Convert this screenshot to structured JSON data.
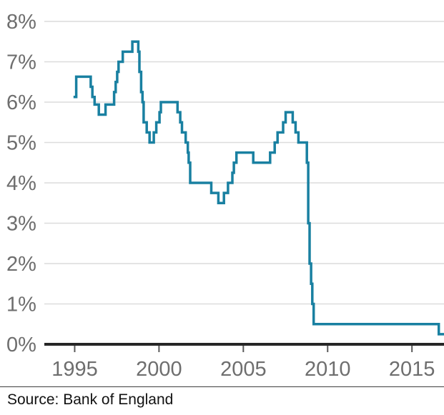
{
  "footer": {
    "source": "Source: Bank of England"
  },
  "colors": {
    "line": "#1980a1",
    "grid": "#dcdcdc",
    "axis": "#262626",
    "tick": "#5a5a5a",
    "label": "#6e6e6e",
    "source_text": "#121212",
    "rule": "#3d3d3d",
    "background": "#ffffff"
  },
  "chart_data": {
    "type": "line",
    "line_style": "step-after",
    "xlabel": "",
    "ylabel": "",
    "grid": "horizontal",
    "legend": "none",
    "xlim": [
      1993.2,
      2016.9
    ],
    "ylim": [
      0,
      8
    ],
    "x_ticks": [
      "1995",
      "2000",
      "2005",
      "2010",
      "2015"
    ],
    "y_ticks": [
      "0%",
      "1%",
      "2%",
      "3%",
      "4%",
      "5%",
      "6%",
      "7%",
      "8%"
    ],
    "unit": "percent",
    "steps": [
      [
        1994.93,
        6.13
      ],
      [
        1995.09,
        6.63
      ],
      [
        1995.95,
        6.38
      ],
      [
        1996.05,
        6.13
      ],
      [
        1996.18,
        5.94
      ],
      [
        1996.43,
        5.69
      ],
      [
        1996.83,
        5.94
      ],
      [
        1997.34,
        6.25
      ],
      [
        1997.43,
        6.5
      ],
      [
        1997.52,
        6.75
      ],
      [
        1997.6,
        7.0
      ],
      [
        1997.85,
        7.25
      ],
      [
        1998.42,
        7.5
      ],
      [
        1998.77,
        7.25
      ],
      [
        1998.84,
        6.75
      ],
      [
        1998.94,
        6.25
      ],
      [
        1999.02,
        6.0
      ],
      [
        1999.09,
        5.5
      ],
      [
        1999.27,
        5.25
      ],
      [
        1999.44,
        5.0
      ],
      [
        1999.69,
        5.25
      ],
      [
        1999.84,
        5.5
      ],
      [
        2000.03,
        5.75
      ],
      [
        2000.11,
        6.0
      ],
      [
        2001.1,
        5.75
      ],
      [
        2001.26,
        5.5
      ],
      [
        2001.36,
        5.25
      ],
      [
        2001.58,
        5.0
      ],
      [
        2001.71,
        4.75
      ],
      [
        2001.76,
        4.5
      ],
      [
        2001.85,
        4.0
      ],
      [
        2003.1,
        3.75
      ],
      [
        2003.52,
        3.5
      ],
      [
        2003.85,
        3.75
      ],
      [
        2004.09,
        4.0
      ],
      [
        2004.35,
        4.25
      ],
      [
        2004.44,
        4.5
      ],
      [
        2004.59,
        4.75
      ],
      [
        2005.59,
        4.5
      ],
      [
        2006.59,
        4.75
      ],
      [
        2006.86,
        5.0
      ],
      [
        2007.03,
        5.25
      ],
      [
        2007.36,
        5.5
      ],
      [
        2007.51,
        5.75
      ],
      [
        2007.93,
        5.5
      ],
      [
        2008.1,
        5.25
      ],
      [
        2008.27,
        5.0
      ],
      [
        2008.77,
        4.5
      ],
      [
        2008.85,
        3.0
      ],
      [
        2008.93,
        2.0
      ],
      [
        2009.02,
        1.5
      ],
      [
        2009.09,
        1.0
      ],
      [
        2009.17,
        0.5
      ],
      [
        2016.59,
        0.25
      ]
    ]
  }
}
